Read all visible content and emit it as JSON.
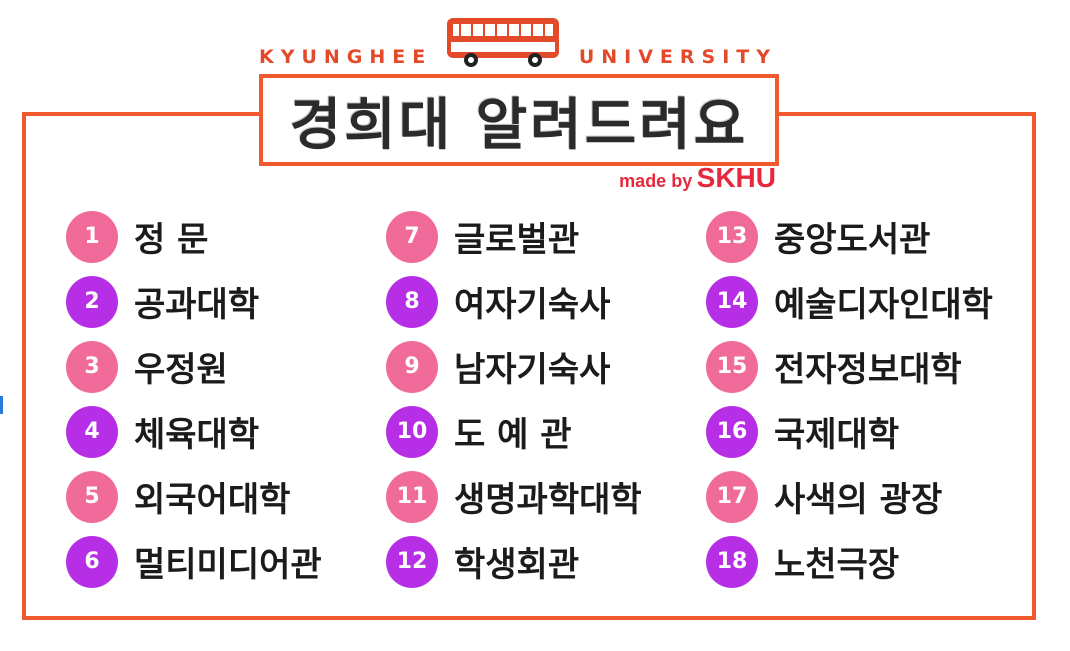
{
  "header": {
    "brand_left": "KYUNGHEE",
    "brand_right": "UNIVERSITY",
    "title": "경희대 알려드려요",
    "made_by_small": "made by",
    "made_by_big": "SKHU"
  },
  "colors": {
    "frame": "#ef5a2e",
    "pink_badge": "#f06a9a",
    "purple_badge": "#b62ee6",
    "accent_text": "#e6293f"
  },
  "items": [
    {
      "num": "1",
      "label": "정 문"
    },
    {
      "num": "7",
      "label": "글로벌관"
    },
    {
      "num": "13",
      "label": "중앙도서관"
    },
    {
      "num": "2",
      "label": "공과대학"
    },
    {
      "num": "8",
      "label": "여자기숙사"
    },
    {
      "num": "14",
      "label": "예술디자인대학"
    },
    {
      "num": "3",
      "label": "우정원"
    },
    {
      "num": "9",
      "label": "남자기숙사"
    },
    {
      "num": "15",
      "label": "전자정보대학"
    },
    {
      "num": "4",
      "label": "체육대학"
    },
    {
      "num": "10",
      "label": "도 예 관"
    },
    {
      "num": "16",
      "label": "국제대학"
    },
    {
      "num": "5",
      "label": "외국어대학"
    },
    {
      "num": "11",
      "label": "생명과학대학"
    },
    {
      "num": "17",
      "label": "사색의 광장"
    },
    {
      "num": "6",
      "label": "멀티미디어관"
    },
    {
      "num": "12",
      "label": "학생회관"
    },
    {
      "num": "18",
      "label": "노천극장"
    }
  ],
  "icons": {
    "bus": "bus-icon"
  }
}
